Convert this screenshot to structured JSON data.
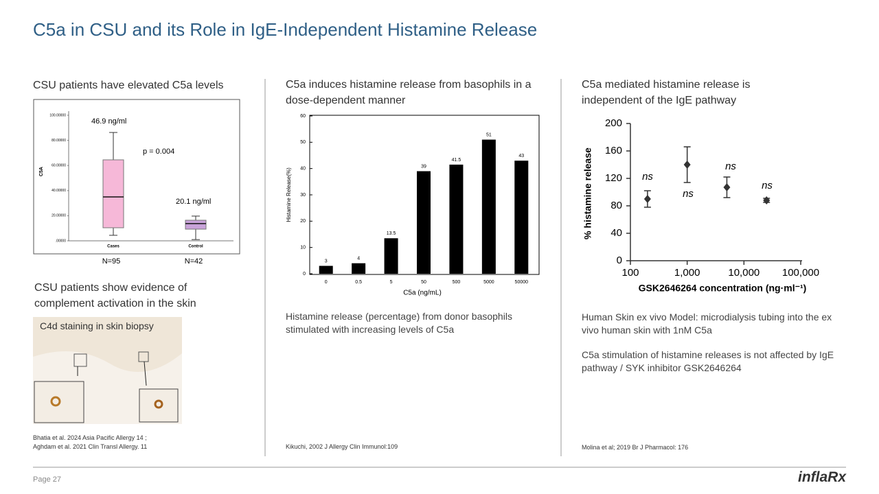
{
  "title": "C5a in CSU and its Role in IgE-Independent Histamine Release",
  "page": "Page 27",
  "logo": "inflaRx",
  "columns": [
    {
      "heading": "CSU patients have elevated C5a levels",
      "subheading": "CSU patients show evidence of complement activation in the skin",
      "image_caption": "C4d staining in skin biopsy",
      "references": [
        "Bhatia et al. 2024 Asia Pacific Allergy 14 ;",
        "Aghdam et al. 2021 Clin Transl Allergy. 11"
      ]
    },
    {
      "heading": "C5a induces histamine release from basophils in a dose-dependent manner",
      "caption": "Histamine release (percentage) from donor basophils stimulated with increasing levels of C5a",
      "references": [
        "Kikuchi, 2002 J Allergy Clin Immunol:109"
      ]
    },
    {
      "heading": "C5a mediated histamine release is independent of the IgE pathway",
      "paragraphs": [
        "Human Skin ex vivo Model: microdialysis tubing into the ex vivo human skin with 1nM C5a",
        "C5a stimulation of histamine releases is not affected by IgE pathway / SYK inhibitor GSK2646264"
      ],
      "references": [
        "Molina et al; 2019 Br J Pharmacol: 176"
      ]
    }
  ],
  "chart_data": [
    {
      "type": "box",
      "ylabel": "C5A",
      "categories": [
        "Cases",
        "Control"
      ],
      "whisker_low": [
        4.4,
        1
      ],
      "q1": [
        10.4,
        9.3
      ],
      "median": [
        35,
        13.7
      ],
      "q3": [
        64.5,
        16.4
      ],
      "whisker_high": [
        86.3,
        19.7
      ],
      "colors": [
        "#f6b8d8",
        "#c9a3da"
      ],
      "ylim": [
        0,
        100
      ],
      "yticks": [
        {
          "value": 0,
          "label": ".00000"
        },
        {
          "value": 20,
          "label": "20.00000"
        },
        {
          "value": 40,
          "label": "40.00000"
        },
        {
          "value": 60,
          "label": "60.00000"
        },
        {
          "value": 80,
          "label": "80.00000"
        },
        {
          "value": 100,
          "label": "100.00000"
        }
      ],
      "annotations": [
        "46.9 ng/ml",
        "p = 0.004",
        "20.1 ng/ml"
      ],
      "sample_sizes": [
        "N=95",
        "N=42"
      ]
    },
    {
      "type": "bar",
      "xlabel": "C5a (ng/mL)",
      "ylabel": "Histamine Release(%)",
      "categories": [
        "0",
        "0.5",
        "5",
        "50",
        "500",
        "5000",
        "50000"
      ],
      "values": [
        3,
        4,
        13.5,
        39,
        41.5,
        51,
        43
      ],
      "color": "#000000",
      "ylim": [
        0,
        60
      ],
      "yticks": [
        0,
        10,
        20,
        30,
        40,
        50,
        60
      ]
    },
    {
      "type": "scatter",
      "xlabel": "GSK2646264 concentration (ng·ml⁻¹)",
      "ylabel": "% histamine release",
      "x": [
        200,
        1000,
        5000,
        25000
      ],
      "values": [
        90,
        140,
        107,
        88
      ],
      "errors": [
        12,
        26,
        15,
        3
      ],
      "color": "#333333",
      "xlog": true,
      "xlim": [
        100,
        100000
      ],
      "xticks": [
        100,
        {
          "value": 1000,
          "label": "1,000"
        },
        {
          "value": 10000,
          "label": "10,000"
        },
        {
          "value": 100000,
          "label": "100,000"
        }
      ],
      "ylim": [
        0,
        200
      ],
      "yticks": [
        0,
        40,
        80,
        120,
        160,
        200
      ],
      "annotations": [
        "ns",
        "ns",
        "ns",
        "ns"
      ]
    }
  ]
}
